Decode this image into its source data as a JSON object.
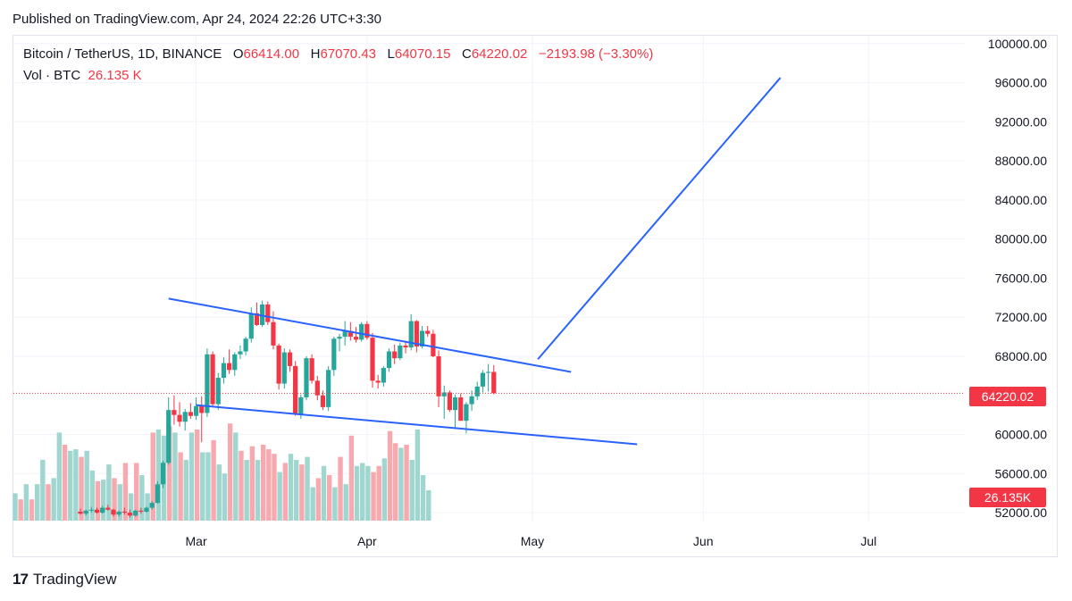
{
  "published": "Published on TradingView.com, Apr 24, 2024 22:26 UTC+3:30",
  "legend": {
    "symbol": "Bitcoin / TetherUS, 1D, BINANCE",
    "o_label": "O",
    "o": "66414.00",
    "h_label": "H",
    "h": "67070.43",
    "l_label": "L",
    "l": "64070.15",
    "c_label": "C",
    "c": "64220.02",
    "change": "−2193.98 (−3.30%)",
    "vol_label": "Vol · BTC",
    "vol": "26.135 K"
  },
  "price_tag": "64220.02",
  "vol_tag": "26.135K",
  "brand": {
    "logo": "17",
    "name": "TradingView"
  },
  "colors": {
    "up": "#26a69a",
    "down": "#f23645",
    "up_vol": "#9fd6cf",
    "down_vol": "#f6a9ae",
    "trend": "#2962ff",
    "grid": "#f0f3fa"
  },
  "chart_data": {
    "type": "candlestick",
    "x_axis_labels": [
      "Mar",
      "Apr",
      "May",
      "Jun",
      "Jul"
    ],
    "y_axis_labels": [
      "100000.00",
      "96000.00",
      "92000.00",
      "88000.00",
      "84000.00",
      "80000.00",
      "76000.00",
      "72000.00",
      "68000.00",
      "64220.02",
      "60000.00",
      "56000.00",
      "52000.00"
    ],
    "y_ticks": [
      100000,
      96000,
      92000,
      88000,
      84000,
      80000,
      76000,
      72000,
      68000,
      60000,
      56000,
      52000
    ],
    "ylim": [
      51000,
      100800
    ],
    "last_close": 64220.02,
    "candles": [
      [
        52100,
        52400,
        51800,
        51900
      ],
      [
        51900,
        52300,
        51700,
        52200
      ],
      [
        52200,
        52600,
        52000,
        52300
      ],
      [
        52300,
        52500,
        51900,
        52000
      ],
      [
        52000,
        52700,
        51900,
        52500
      ],
      [
        52500,
        52800,
        52200,
        52300
      ],
      [
        52300,
        52400,
        51600,
        51800
      ],
      [
        51800,
        52200,
        51600,
        52100
      ],
      [
        52100,
        52500,
        51800,
        52000
      ],
      [
        52000,
        52300,
        51500,
        51700
      ],
      [
        51700,
        52300,
        51600,
        52200
      ],
      [
        52200,
        52500,
        51900,
        52100
      ],
      [
        52100,
        52600,
        52000,
        52500
      ],
      [
        52500,
        53200,
        52300,
        53000
      ],
      [
        53000,
        55200,
        52900,
        54900
      ],
      [
        54900,
        57300,
        54500,
        57100
      ],
      [
        57100,
        63800,
        56900,
        62500
      ],
      [
        62500,
        64000,
        61000,
        62000
      ],
      [
        62000,
        63300,
        60800,
        61300
      ],
      [
        61300,
        62600,
        60400,
        62300
      ],
      [
        62300,
        63200,
        61600,
        61900
      ],
      [
        61900,
        63800,
        61500,
        62900
      ],
      [
        62900,
        63900,
        59200,
        62200
      ],
      [
        62200,
        68800,
        61800,
        68200
      ],
      [
        68200,
        68500,
        62900,
        63100
      ],
      [
        63100,
        66300,
        62500,
        65800
      ],
      [
        65800,
        67900,
        65200,
        67300
      ],
      [
        67300,
        68700,
        66200,
        66600
      ],
      [
        66600,
        68400,
        66000,
        68200
      ],
      [
        68200,
        69100,
        67700,
        68500
      ],
      [
        68500,
        70000,
        68100,
        69800
      ],
      [
        69800,
        73000,
        69400,
        72400
      ],
      [
        72400,
        73500,
        71100,
        71200
      ],
      [
        71200,
        73700,
        71000,
        73300
      ],
      [
        73300,
        73600,
        71200,
        71500
      ],
      [
        71500,
        72600,
        68700,
        69100
      ],
      [
        69100,
        69300,
        64600,
        65200
      ],
      [
        65200,
        68800,
        64700,
        68400
      ],
      [
        68400,
        68700,
        66400,
        67000
      ],
      [
        67000,
        67500,
        61900,
        62100
      ],
      [
        62100,
        64100,
        61600,
        63800
      ],
      [
        63800,
        68000,
        63500,
        67800
      ],
      [
        67800,
        68200,
        65200,
        65500
      ],
      [
        65500,
        66000,
        63500,
        64000
      ],
      [
        64000,
        64500,
        62500,
        62800
      ],
      [
        62800,
        67000,
        62400,
        66600
      ],
      [
        66600,
        70000,
        66000,
        69800
      ],
      [
        69800,
        70300,
        68500,
        70000
      ],
      [
        70000,
        71600,
        69100,
        70600
      ],
      [
        70600,
        71500,
        69600,
        70000
      ],
      [
        70000,
        71000,
        69400,
        69700
      ],
      [
        69700,
        71500,
        69500,
        71300
      ],
      [
        71300,
        71600,
        69700,
        69900
      ],
      [
        69900,
        70400,
        64800,
        65500
      ],
      [
        65500,
        66100,
        64700,
        65300
      ],
      [
        65300,
        67000,
        64900,
        66800
      ],
      [
        66800,
        68800,
        66400,
        68500
      ],
      [
        68500,
        69200,
        67200,
        67800
      ],
      [
        67800,
        69400,
        67600,
        69100
      ],
      [
        69100,
        69600,
        68300,
        68900
      ],
      [
        68900,
        72300,
        68600,
        71600
      ],
      [
        71600,
        71700,
        68400,
        69000
      ],
      [
        69000,
        71100,
        68800,
        70600
      ],
      [
        70600,
        71100,
        70000,
        70300
      ],
      [
        70300,
        70700,
        67900,
        68000
      ],
      [
        68000,
        68600,
        62800,
        63900
      ],
      [
        63900,
        65000,
        61600,
        64300
      ],
      [
        64300,
        64500,
        62300,
        62500
      ],
      [
        62500,
        64100,
        60600,
        63800
      ],
      [
        63800,
        64200,
        61800,
        61400
      ],
      [
        61400,
        63300,
        60100,
        63100
      ],
      [
        63100,
        64500,
        62400,
        63900
      ],
      [
        63900,
        65400,
        63500,
        64900
      ],
      [
        64900,
        66600,
        64300,
        66300
      ],
      [
        66300,
        67200,
        64400,
        66400
      ],
      [
        66400,
        67100,
        64100,
        64220
      ]
    ],
    "volumes": [
      [
        18,
        0
      ],
      [
        14,
        1
      ],
      [
        24,
        0
      ],
      [
        14,
        1
      ],
      [
        24,
        0
      ],
      [
        40,
        0
      ],
      [
        24,
        1
      ],
      [
        28,
        0
      ],
      [
        58,
        0
      ],
      [
        50,
        1
      ],
      [
        46,
        0
      ],
      [
        47,
        0
      ],
      [
        42,
        1
      ],
      [
        46,
        0
      ],
      [
        33,
        0
      ],
      [
        26,
        1
      ],
      [
        27,
        0
      ],
      [
        37,
        0
      ],
      [
        28,
        1
      ],
      [
        24,
        0
      ],
      [
        38,
        1
      ],
      [
        18,
        0
      ],
      [
        38,
        1
      ],
      [
        30,
        0
      ],
      [
        18,
        0
      ],
      [
        58,
        1
      ],
      [
        60,
        0
      ],
      [
        56,
        0
      ],
      [
        62,
        1
      ],
      [
        58,
        0
      ],
      [
        45,
        1
      ],
      [
        40,
        0
      ],
      [
        58,
        0
      ],
      [
        60,
        1
      ],
      [
        45,
        0
      ],
      [
        45,
        0
      ],
      [
        53,
        1
      ],
      [
        37,
        0
      ],
      [
        31,
        0
      ],
      [
        64,
        1
      ],
      [
        58,
        0
      ],
      [
        46,
        1
      ],
      [
        40,
        0
      ],
      [
        49,
        1
      ],
      [
        40,
        0
      ],
      [
        50,
        1
      ],
      [
        47,
        1
      ],
      [
        44,
        1
      ],
      [
        32,
        0
      ],
      [
        38,
        1
      ],
      [
        44,
        0
      ],
      [
        40,
        0
      ],
      [
        37,
        1
      ],
      [
        42,
        0
      ],
      [
        22,
        0
      ],
      [
        28,
        1
      ],
      [
        36,
        0
      ],
      [
        30,
        1
      ],
      [
        22,
        0
      ],
      [
        42,
        1
      ],
      [
        24,
        0
      ],
      [
        56,
        1
      ],
      [
        36,
        0
      ],
      [
        38,
        0
      ],
      [
        36,
        0
      ],
      [
        32,
        1
      ],
      [
        36,
        1
      ],
      [
        41,
        0
      ],
      [
        59,
        1
      ],
      [
        51,
        1
      ],
      [
        48,
        0
      ],
      [
        50,
        1
      ],
      [
        40,
        0
      ],
      [
        60,
        0
      ],
      [
        30,
        0
      ],
      [
        20,
        0
      ]
    ],
    "trendlines": [
      {
        "from": [
          "2024-02-25",
          73900
        ],
        "to": [
          "2024-05-08",
          66400
        ]
      },
      {
        "from": [
          "2024-03-01",
          63000
        ],
        "to": [
          "2024-05-20",
          59000
        ]
      },
      {
        "from": [
          "2024-05-02",
          67700
        ],
        "to": [
          "2024-06-15",
          96500
        ]
      }
    ]
  }
}
